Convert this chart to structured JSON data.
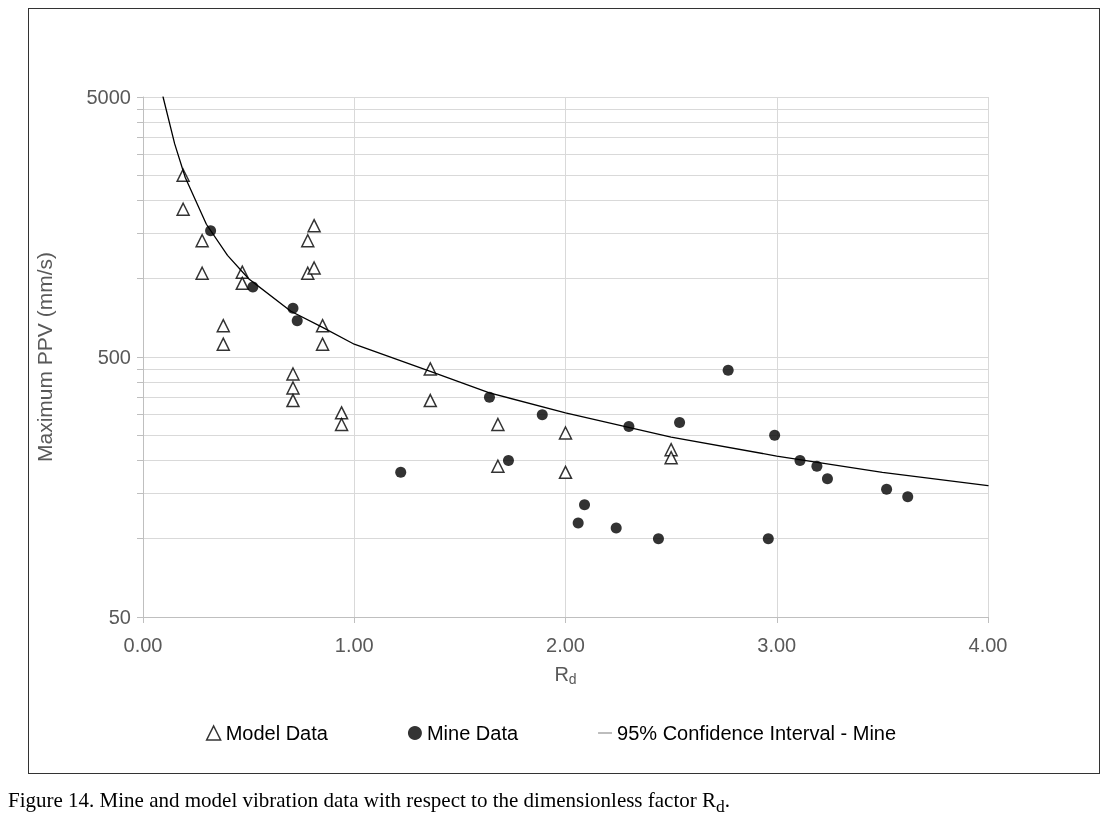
{
  "chart_data": {
    "type": "scatter",
    "xlabel": "R$_{d}$",
    "ylabel": "Maximum PPV (mm/s)",
    "annotations": [
      "Figure 14. Mine and model vibration data with respect to the dimensionless factor R$_{d}$."
    ],
    "log": "y",
    "grid": true,
    "legend": "bottom",
    "xlim": [
      0,
      4
    ],
    "xticks": [
      {
        "value": 0,
        "label": "0.00"
      },
      {
        "value": 1,
        "label": "1.00"
      },
      {
        "value": 2,
        "label": "2.00"
      },
      {
        "value": 3,
        "label": "3.00"
      },
      {
        "value": 4,
        "label": "4.00"
      }
    ],
    "ylim": [
      50,
      5000
    ],
    "yticks": [
      50,
      {
        "value": 100,
        "label": null
      },
      {
        "value": 150,
        "label": null
      },
      {
        "value": 200,
        "label": null
      },
      {
        "value": 250,
        "label": null
      },
      {
        "value": 300,
        "label": null
      },
      {
        "value": 350,
        "label": null
      },
      {
        "value": 400,
        "label": null
      },
      {
        "value": 450,
        "label": null
      },
      500,
      {
        "value": 1000,
        "label": null
      },
      {
        "value": 1500,
        "label": null
      },
      {
        "value": 2000,
        "label": null
      },
      {
        "value": 2500,
        "label": null
      },
      {
        "value": 3000,
        "label": null
      },
      {
        "value": 3500,
        "label": null
      },
      {
        "value": 4000,
        "label": null
      },
      {
        "value": 4500,
        "label": null
      },
      5000
    ],
    "series": [
      {
        "name": "Model Data",
        "marker": "triangle",
        "color": "#000000",
        "x": [
          0.19,
          0.19,
          0.28,
          0.28,
          0.38,
          0.38,
          0.47,
          0.47,
          0.71,
          0.71,
          0.71,
          0.78,
          0.78,
          0.81,
          0.81,
          0.85,
          0.85,
          0.94,
          0.94,
          1.36,
          1.36,
          1.68,
          1.68,
          2.0,
          2.0,
          2.5,
          2.5
        ],
        "values": [
          2500,
          1850,
          1400,
          1050,
          660,
          560,
          1060,
          960,
          430,
          380,
          340,
          1400,
          1050,
          1600,
          1100,
          660,
          560,
          305,
          275,
          450,
          340,
          275,
          190,
          255,
          180,
          220,
          205
        ]
      },
      {
        "name": "Mine Data",
        "marker": "circle",
        "color": "#000000",
        "x": [
          0.32,
          0.52,
          0.71,
          0.73,
          1.22,
          1.64,
          1.73,
          1.89,
          2.09,
          2.06,
          2.24,
          2.3,
          2.44,
          2.54,
          2.77,
          2.99,
          2.96,
          3.11,
          3.19,
          3.24,
          3.52,
          3.62
        ],
        "values": [
          1530,
          930,
          770,
          690,
          180,
          350,
          200,
          300,
          135,
          115,
          110,
          270,
          100,
          280,
          445,
          250,
          100,
          200,
          190,
          170,
          155,
          145
        ]
      },
      {
        "name": "95% Confidence Interval - Mine",
        "type": "line",
        "marker": "none",
        "line_style": "solid",
        "color": "#000000",
        "x": [
          0.095,
          0.15,
          0.2,
          0.3,
          0.4,
          0.5,
          0.7,
          0.85,
          1.0,
          1.36,
          1.64,
          2.0,
          2.5,
          3.0,
          3.5,
          4.0
        ],
        "values": [
          5000,
          3300,
          2450,
          1620,
          1230,
          1000,
          750,
          650,
          560,
          440,
          364,
          305,
          246,
          208,
          180,
          160
        ]
      }
    ]
  }
}
